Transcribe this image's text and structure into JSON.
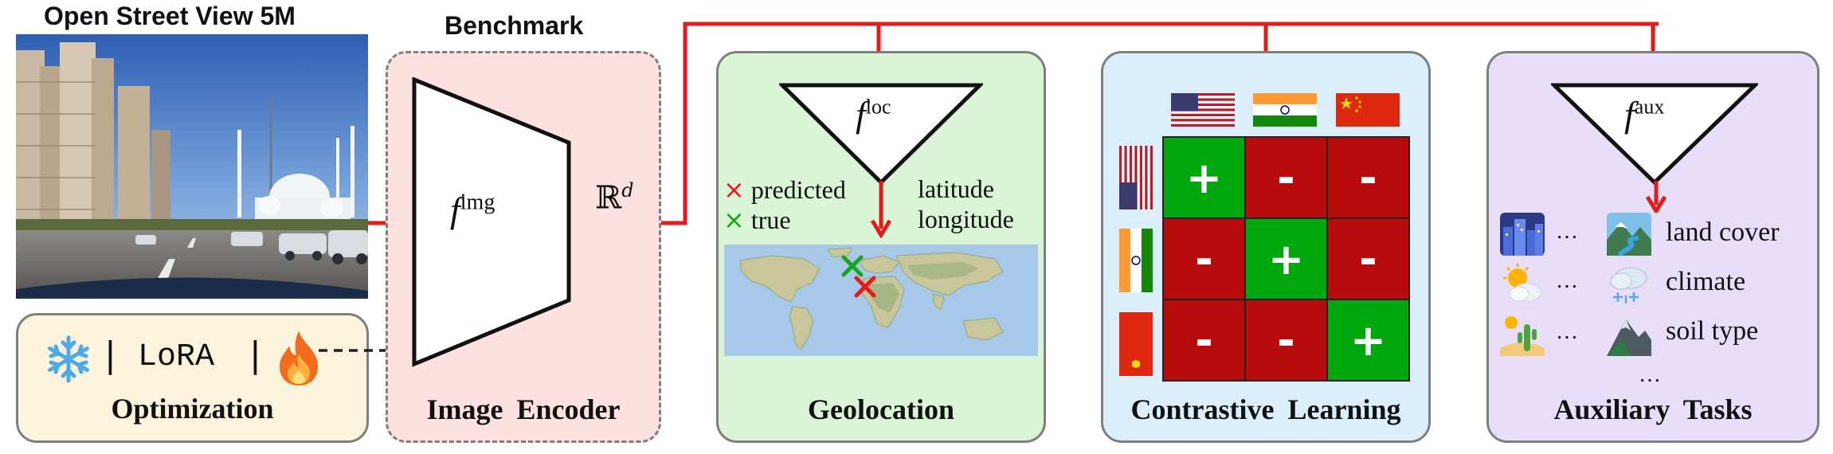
{
  "dataset": {
    "title": "Open Street View 5M"
  },
  "benchmark": {
    "title": "Benchmark"
  },
  "encoder": {
    "function_label": "f",
    "function_sup": "img",
    "output_space": "ℝ",
    "output_sup": "d"
  },
  "optimization": {
    "title": "Optimization",
    "frozen_icon": "snowflake-icon",
    "method_label": "LoRA",
    "trainable_icon": "fire-icon",
    "separator": "|"
  },
  "panels": {
    "encoder": "Image Encoder",
    "geolocation": "Geolocation",
    "contrastive": "Contrastive Learning",
    "auxiliary": "Auxiliary Tasks"
  },
  "geolocation": {
    "function_label": "f",
    "function_sup": "loc",
    "legend_predicted_mark": "×",
    "legend_predicted": "predicted",
    "legend_true_mark": "×",
    "legend_true": "true",
    "output_line1": "latitude",
    "output_line2": "longitude"
  },
  "contrastive": {
    "column_flags": [
      "usa-flag",
      "india-flag",
      "china-flag"
    ],
    "row_flags": [
      "usa-flag",
      "india-flag",
      "china-flag"
    ],
    "matrix": [
      [
        "+",
        "-",
        "-"
      ],
      [
        "-",
        "+",
        "-"
      ],
      [
        "-",
        "-",
        "+"
      ]
    ]
  },
  "auxiliary": {
    "function_label": "f",
    "function_sup": "aux",
    "ellipsis": "…",
    "tasks": [
      {
        "label": "land cover",
        "icon_left": "city-icon",
        "icon_right": "river-landscape-icon"
      },
      {
        "label": "climate",
        "icon_left": "sun-cloud-icon",
        "icon_right": "snow-cloud-icon"
      },
      {
        "label": "soil type",
        "icon_left": "desert-cactus-icon",
        "icon_right": "mountain-icon"
      }
    ],
    "more": "…"
  },
  "colors": {
    "arrow": "#e41a1c",
    "encoder_panel": "#fde0e0",
    "geolocation_panel": "#d9f5d6",
    "contrastive_panel": "#daeefc",
    "auxiliary_panel": "#e8defa",
    "optimization_panel": "#fbf3dc",
    "positive": "#00a80d",
    "negative": "#b80c0c"
  }
}
